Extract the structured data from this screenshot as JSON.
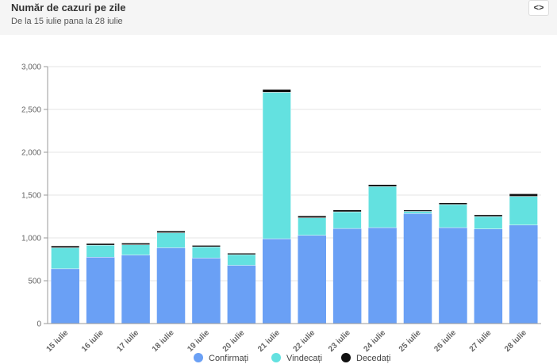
{
  "header": {
    "title": "Număr de cazuri pe zile",
    "subtitle": "De la 15 iulie pana la 28 iulie",
    "code_button_icon": "code-brackets-icon",
    "code_button_label": "<>"
  },
  "chart_data": {
    "type": "bar",
    "stacked": true,
    "categories": [
      "15 iulie",
      "16 iulie",
      "17 iulie",
      "18 iulie",
      "19 iulie",
      "20 iulie",
      "21 iulie",
      "22 iulie",
      "23 iulie",
      "24 iulie",
      "25 iulie",
      "26 iulie",
      "27 iulie",
      "28 iulie"
    ],
    "series": [
      {
        "name": "Confirmați",
        "color": "#6aa0f5",
        "values": [
          640,
          775,
          800,
          885,
          765,
          680,
          990,
          1030,
          1110,
          1120,
          1285,
          1120,
          1105,
          1150
        ]
      },
      {
        "name": "Vindecați",
        "color": "#63e1e0",
        "values": [
          245,
          140,
          120,
          175,
          130,
          125,
          1710,
          205,
          195,
          480,
          25,
          270,
          145,
          335
        ]
      },
      {
        "name": "Decedați",
        "color": "#111111",
        "values": [
          22,
          20,
          20,
          22,
          18,
          17,
          35,
          23,
          22,
          23,
          16,
          20,
          20,
          30
        ]
      }
    ],
    "yticks": [
      "0",
      "500",
      "1,000",
      "1,500",
      "2,000",
      "2,500",
      "3,000"
    ],
    "ylim": [
      0,
      3000
    ],
    "grid": true,
    "legend": "bottom"
  }
}
